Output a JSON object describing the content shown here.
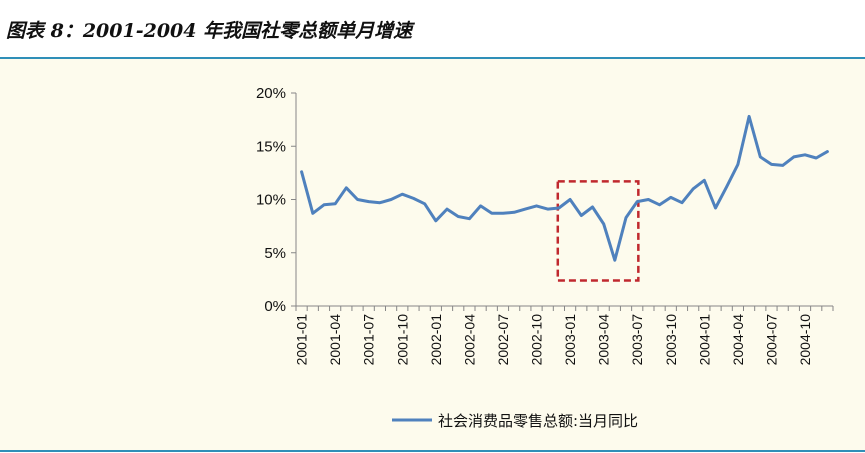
{
  "title": "图表 8：2001-2004 年我国社零总额单月增速",
  "colors": {
    "line": "#4f81bd",
    "highlight_box": "#c0282e",
    "rule": "#2f8fb8",
    "plot_background": "#fdfbed"
  },
  "chart_data": {
    "type": "line",
    "title": "",
    "xlabel": "",
    "ylabel": "",
    "ylim": [
      0,
      20
    ],
    "y_ticks": [
      "0%",
      "5%",
      "10%",
      "15%",
      "20%"
    ],
    "y_tick_values": [
      0,
      5,
      10,
      15,
      20
    ],
    "grid": false,
    "legend_position": "bottom",
    "x_tick_labels": [
      "2001-01",
      "2001-04",
      "2001-07",
      "2001-10",
      "2002-01",
      "2002-04",
      "2002-07",
      "2002-10",
      "2003-01",
      "2003-04",
      "2003-07",
      "2003-10",
      "2004-01",
      "2004-04",
      "2004-07",
      "2004-10"
    ],
    "x": [
      "2001-01",
      "2001-02",
      "2001-03",
      "2001-04",
      "2001-05",
      "2001-06",
      "2001-07",
      "2001-08",
      "2001-09",
      "2001-10",
      "2001-11",
      "2001-12",
      "2002-01",
      "2002-02",
      "2002-03",
      "2002-04",
      "2002-05",
      "2002-06",
      "2002-07",
      "2002-08",
      "2002-09",
      "2002-10",
      "2002-11",
      "2002-12",
      "2003-01",
      "2003-02",
      "2003-03",
      "2003-04",
      "2003-05",
      "2003-06",
      "2003-07",
      "2003-08",
      "2003-09",
      "2003-10",
      "2003-11",
      "2003-12",
      "2004-01",
      "2004-02",
      "2004-03",
      "2004-04",
      "2004-05",
      "2004-06",
      "2004-07",
      "2004-08",
      "2004-09",
      "2004-10",
      "2004-11",
      "2004-12"
    ],
    "series": [
      {
        "name": "社会消费品零售总额:当月同比",
        "values": [
          12.6,
          8.7,
          9.5,
          9.6,
          11.1,
          10.0,
          9.8,
          9.7,
          10.0,
          10.5,
          10.1,
          9.6,
          8.0,
          9.1,
          8.4,
          8.2,
          9.4,
          8.7,
          8.7,
          8.8,
          9.1,
          9.4,
          9.1,
          9.2,
          10.0,
          8.5,
          9.3,
          7.7,
          4.3,
          8.3,
          9.8,
          10.0,
          9.5,
          10.2,
          9.7,
          11.0,
          11.8,
          9.2,
          11.2,
          13.3,
          17.8,
          14.0,
          13.3,
          13.2,
          14.0,
          14.2,
          13.9,
          14.5
        ]
      }
    ],
    "annotations": [
      {
        "type": "highlight_box",
        "x_start": "2002-12",
        "x_end": "2003-07",
        "y_start": 2.4,
        "y_end": 11.7
      }
    ]
  }
}
